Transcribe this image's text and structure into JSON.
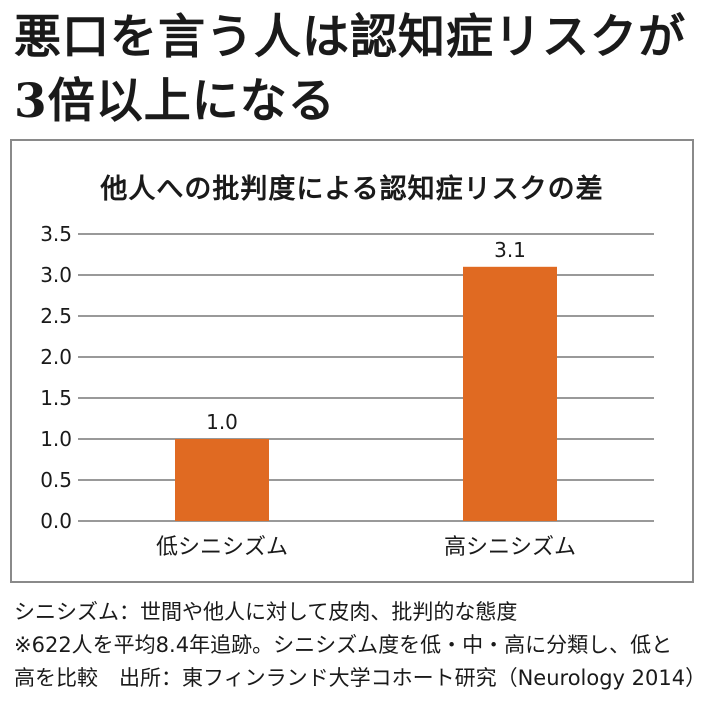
{
  "headline": {
    "line1": "悪口を言う人は認知症リスクが",
    "line2": "3倍以上になる"
  },
  "chart_data": {
    "type": "bar",
    "title": "他人への批判度による認知症リスクの差",
    "categories": [
      "低シニシズム",
      "高シニシズム"
    ],
    "values": [
      1.0,
      3.1
    ],
    "value_labels": [
      "1.0",
      "3.1"
    ],
    "ylim": [
      0,
      3.5
    ],
    "yticks": [
      "0.0",
      "0.5",
      "1.0",
      "1.5",
      "2.0",
      "2.5",
      "3.0",
      "3.5"
    ],
    "grid": true,
    "bar_color": "#e06a22",
    "grid_color": "#333333"
  },
  "notes": {
    "line1": "シニシズム：世間や他人に対して皮肉、批判的な態度",
    "line2": "※622人を平均8.4年追跡。シニシズム度を低・中・高に分類し、低と",
    "line3": "高を比較　出所：東フィンランド大学コホート研究（Neurology 2014）"
  }
}
